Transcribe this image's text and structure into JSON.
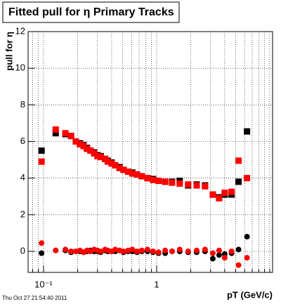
{
  "chart_data": {
    "type": "scatter",
    "title": "Fitted pull for η  Primary Tracks",
    "y_label": "pull for η",
    "x_label": "pT (GeV/c)",
    "timestamp": "Thu Oct 27 21:54:40 2011",
    "log_x": true,
    "grid": true,
    "xlim": [
      0.073,
      10.6
    ],
    "ylim": [
      -1.15,
      12
    ],
    "xticks": [
      {
        "value": 0.1,
        "label": "10⁻¹"
      },
      1
    ],
    "xminorticks": [
      0.08,
      0.09,
      0.2,
      0.3,
      0.4,
      0.5,
      0.6,
      0.7,
      0.8,
      0.9,
      2,
      3,
      4,
      5,
      6,
      7,
      8,
      9,
      10
    ],
    "yticks": [
      0,
      2,
      4,
      6,
      8,
      10,
      12
    ],
    "x": [
      0.096,
      0.128,
      0.156,
      0.175,
      0.193,
      0.21,
      0.226,
      0.242,
      0.26,
      0.28,
      0.3,
      0.32,
      0.35,
      0.37,
      0.4,
      0.43,
      0.47,
      0.51,
      0.56,
      0.61,
      0.67,
      0.74,
      0.83,
      0.93,
      1.04,
      1.19,
      1.37,
      1.6,
      1.9,
      2.26,
      2.68,
      3.14,
      3.57,
      4.0,
      4.6,
      5.3,
      6.3
    ],
    "series": [
      {
        "color": "#000000",
        "marker": "square",
        "values": [
          5.5,
          6.45,
          6.4,
          6.3,
          6.0,
          5.9,
          5.8,
          5.65,
          5.5,
          5.4,
          5.25,
          5.2,
          5.05,
          4.95,
          4.85,
          4.7,
          4.6,
          4.45,
          4.35,
          4.3,
          4.2,
          4.1,
          4.0,
          3.95,
          3.85,
          3.8,
          3.8,
          3.85,
          3.6,
          3.65,
          3.6,
          3.1,
          2.95,
          3.1,
          3.1,
          3.8,
          6.55
        ]
      },
      {
        "color": "#000000",
        "marker": "circle",
        "values": [
          -0.1,
          0.05,
          0.05,
          -0.05,
          0.0,
          0.0,
          -0.05,
          0.0,
          0.05,
          0.0,
          0.0,
          -0.05,
          0.05,
          0.0,
          0.0,
          0.0,
          0.05,
          -0.05,
          0.0,
          0.0,
          -0.05,
          0.0,
          0.0,
          -0.05,
          -0.1,
          -0.1,
          0.0,
          0.0,
          -0.05,
          -0.05,
          0.0,
          -0.4,
          -0.2,
          -0.15,
          -0.1,
          0.1,
          0.8
        ]
      },
      {
        "color": "#ff0000",
        "marker": "square",
        "values": [
          4.9,
          6.65,
          6.45,
          6.3,
          6.0,
          5.85,
          5.75,
          5.6,
          5.5,
          5.35,
          5.2,
          5.15,
          5.05,
          4.9,
          4.8,
          4.7,
          4.55,
          4.45,
          4.35,
          4.25,
          4.2,
          4.1,
          4.0,
          3.9,
          3.85,
          3.8,
          3.75,
          3.7,
          3.65,
          3.6,
          3.55,
          3.1,
          2.9,
          3.2,
          3.25,
          4.95,
          4.0
        ]
      },
      {
        "color": "#ff0000",
        "marker": "circle",
        "values": [
          0.45,
          0.05,
          0.1,
          0.0,
          0.0,
          0.05,
          -0.05,
          0.05,
          0.0,
          0.1,
          0.05,
          0.0,
          0.1,
          0.05,
          0.0,
          0.1,
          0.05,
          0.0,
          0.05,
          0.1,
          0.0,
          0.05,
          0.1,
          0.0,
          -0.05,
          0.05,
          0.0,
          0.1,
          0.0,
          0.05,
          0.1,
          -0.1,
          0.05,
          -0.35,
          0.0,
          -0.75,
          -0.35
        ]
      }
    ]
  }
}
